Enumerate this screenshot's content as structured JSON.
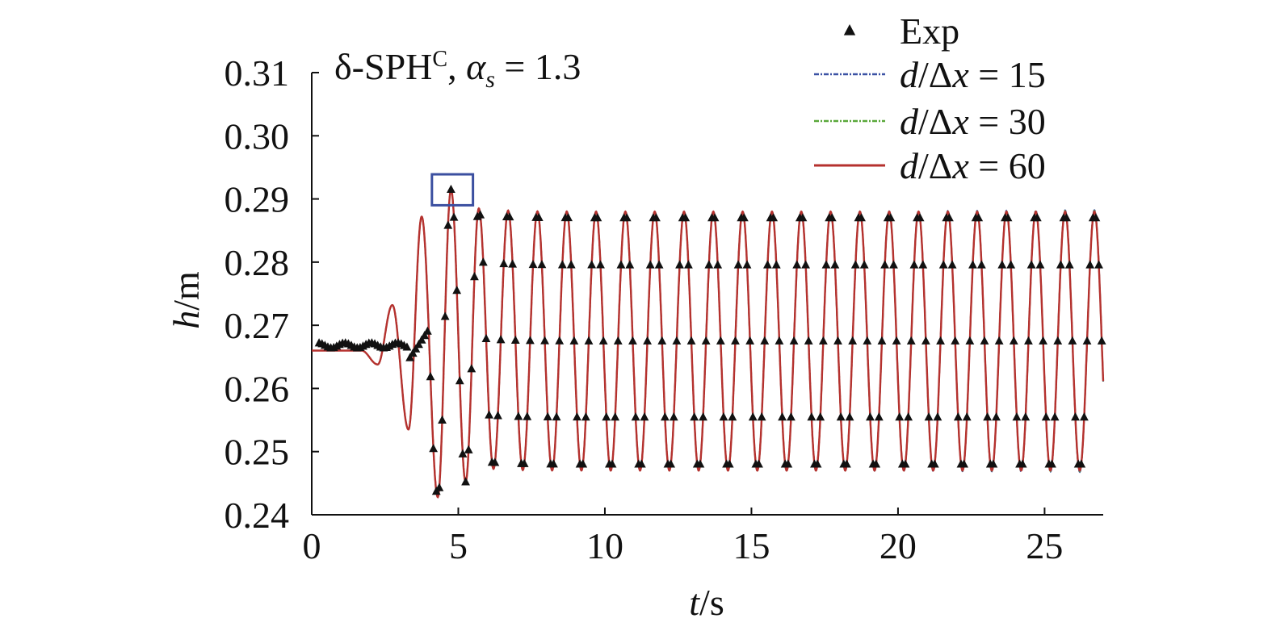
{
  "chart_data": {
    "type": "line",
    "annotation": {
      "text_main": "δ-SPH",
      "text_sup": "C",
      "text_sep": ", ",
      "text_alpha": "α",
      "text_sub": "s",
      "text_value": " = 1.3"
    },
    "xlabel": {
      "italic": "t",
      "rest": "/s"
    },
    "ylabel": {
      "italic": "h",
      "rest": "/m"
    },
    "xlim": [
      0,
      27
    ],
    "ylim": [
      0.24,
      0.31
    ],
    "xticks": [
      0,
      5,
      10,
      15,
      20,
      25
    ],
    "xtick_labels": [
      "0",
      "5",
      "10",
      "15",
      "20",
      "25"
    ],
    "yticks": [
      0.24,
      0.25,
      0.26,
      0.27,
      0.28,
      0.29,
      0.3,
      0.31
    ],
    "ytick_labels": [
      "0.24",
      "0.25",
      "0.26",
      "0.27",
      "0.28",
      "0.29",
      "0.30",
      "0.31"
    ],
    "legend_position": "top-right",
    "highlight_box": {
      "x": [
        4.1,
        5.5
      ],
      "y": [
        0.289,
        0.2939
      ],
      "color": "#3b4fa0"
    },
    "wave_model": {
      "baseline": 0.266,
      "steady_center": 0.2675,
      "steady_amplitude": 0.0205,
      "period_s": 1.0,
      "onset_s": 1.7,
      "t_end": 27,
      "early_peaks": [
        {
          "t": 2.25,
          "h": 0.2638
        },
        {
          "t": 2.75,
          "h": 0.2732
        },
        {
          "t": 3.3,
          "h": 0.2535
        },
        {
          "t": 3.75,
          "h": 0.2872
        },
        {
          "t": 4.3,
          "h": 0.2428
        },
        {
          "t": 4.75,
          "h": 0.2915
        },
        {
          "t": 5.25,
          "h": 0.2452
        },
        {
          "t": 5.7,
          "h": 0.2885
        }
      ]
    },
    "series": [
      {
        "name": "Exp",
        "kind": "scatter",
        "marker": "triangle",
        "color": "#111111"
      },
      {
        "name": "d/Δx = 15",
        "label_italic": "d",
        "label_rest": "/Δ",
        "label_italic2": "x",
        "label_value": " = 15",
        "kind": "line",
        "dash": "dashdot",
        "color": "#3b52a4"
      },
      {
        "name": "d/Δx = 30",
        "label_italic": "d",
        "label_rest": "/Δ",
        "label_italic2": "x",
        "label_value": " = 30",
        "kind": "line",
        "dash": "dashdot",
        "color": "#5aa83a"
      },
      {
        "name": "d/Δx = 60",
        "label_italic": "d",
        "label_rest": "/Δ",
        "label_italic2": "x",
        "label_value": " = 60",
        "kind": "line",
        "dash": "solid",
        "color": "#b5312e"
      }
    ]
  }
}
